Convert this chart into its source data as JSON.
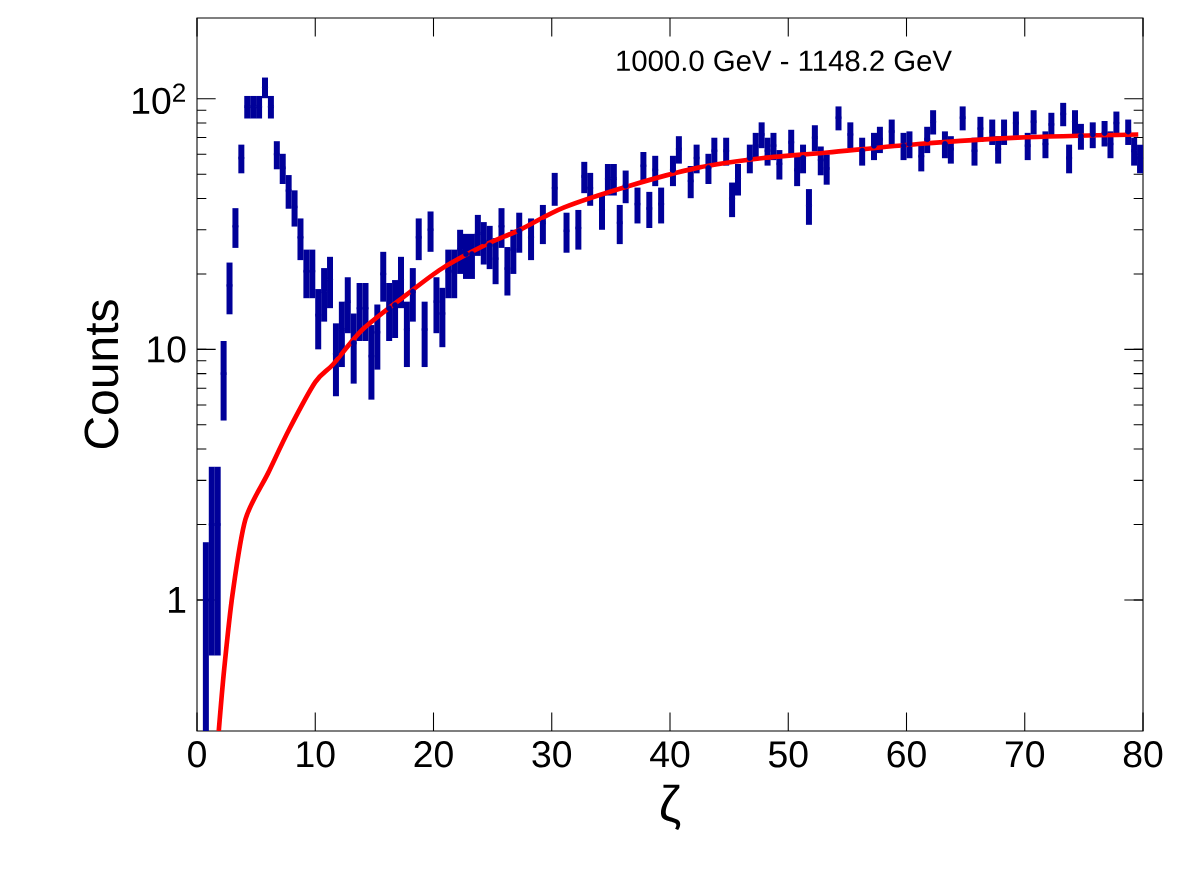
{
  "chart_data": {
    "type": "scatter",
    "xlabel": "ζ",
    "ylabel": "Counts",
    "annotations": [
      "1000.0 GeV - 1148.2 GeV"
    ],
    "log": "y",
    "xlim": [
      0,
      80
    ],
    "ylim": [
      0.3,
      210
    ],
    "xticks": [
      0,
      10,
      20,
      30,
      40,
      50,
      60,
      70,
      80
    ],
    "yticks": [
      1,
      10,
      {
        "value": 100,
        "label": "10$^{2}$"
      }
    ],
    "marker": "none",
    "series": [
      {
        "color": "#000099",
        "x": [
          0.75,
          1.25,
          1.75,
          2.25,
          2.75,
          3.25,
          3.75,
          4.25,
          4.75,
          5.25,
          5.75,
          6.25,
          6.75,
          7.25,
          7.75,
          8.25,
          8.75,
          9.25,
          9.75,
          10.25,
          10.75,
          11.25,
          11.75,
          12.25,
          12.75,
          13.25,
          13.75,
          14.25,
          14.75,
          15.25,
          15.75,
          16.25,
          16.75,
          17.25,
          17.75,
          18.25,
          18.75,
          19.25,
          19.75,
          20.25,
          20.75,
          21.25,
          21.75,
          22.25,
          22.75,
          23.25,
          23.75,
          24.25,
          24.75,
          25.25,
          25.75,
          26.25,
          26.75,
          27.25,
          28.25,
          29.25,
          30.25,
          31.25,
          32.25,
          32.75,
          33.25,
          34.25,
          34.75,
          35.25,
          35.75,
          36.25,
          37.25,
          37.75,
          38.25,
          38.75,
          39.25,
          40.25,
          40.75,
          41.75,
          42.25,
          43.25,
          43.75,
          44.75,
          45.25,
          45.75,
          46.75,
          47.25,
          47.75,
          48.25,
          48.75,
          49.25,
          50.25,
          50.75,
          51.25,
          51.75,
          52.25,
          52.75,
          53.25,
          54.25,
          55.25,
          56.25,
          57.25,
          57.75,
          58.75,
          59.75,
          60.25,
          61.25,
          61.75,
          62.25,
          63.25,
          63.75,
          64.75,
          65.75,
          66.25,
          67.25,
          67.75,
          68.25,
          69.25,
          70.25,
          70.75,
          71.75,
          72.25,
          73.25,
          73.75,
          74.25,
          74.75,
          75.75,
          76.75,
          77.25,
          77.75,
          78.75,
          79.25,
          79.75
        ],
        "values": [
          1,
          2,
          2,
          8,
          18,
          31,
          58,
          93,
          93,
          93,
          111,
          93,
          60,
          53,
          43,
          37,
          28,
          20.5,
          20.5,
          13.7,
          17,
          19,
          9.6,
          12,
          15.5,
          10.6,
          14.6,
          14.6,
          9.4,
          11.7,
          20,
          14.6,
          15,
          19,
          12,
          17,
          28,
          12,
          30,
          15.5,
          13.9,
          20.5,
          20.5,
          25,
          24,
          24,
          29,
          27,
          26,
          23,
          31,
          21,
          25,
          29.7,
          28,
          32,
          44,
          29.7,
          30.5,
          49,
          44,
          36,
          48,
          48,
          32,
          45,
          38,
          54,
          36.5,
          52,
          38,
          52,
          63,
          47,
          58,
          53,
          62,
          62,
          40,
          48,
          58,
          65,
          72,
          62,
          65,
          55,
          67,
          52,
          58,
          37.5,
          70,
          57,
          52.7,
          84,
          72,
          62,
          65,
          69,
          74,
          65,
          66,
          59,
          69,
          81,
          66,
          63,
          84,
          62,
          76,
          74,
          63,
          74,
          80,
          65,
          81,
          66,
          79,
          87,
          58,
          81,
          71,
          72,
          73,
          66,
          80,
          74,
          62,
          58
        ],
        "errors": [
          0.7,
          1.4,
          1.4,
          2.8,
          4.2,
          5.6,
          7.6,
          9.6,
          9.6,
          9.6,
          10.5,
          9.6,
          7.7,
          7.3,
          6.6,
          6.1,
          5.3,
          4.5,
          4.5,
          3.7,
          4.1,
          4.4,
          3.1,
          3.5,
          3.9,
          3.3,
          3.8,
          3.8,
          3.1,
          3.4,
          4.5,
          3.8,
          3.9,
          4.4,
          3.5,
          4.1,
          5.3,
          3.5,
          5.5,
          3.9,
          3.7,
          4.5,
          4.5,
          5,
          4.9,
          4.9,
          5.4,
          5.2,
          5.1,
          4.8,
          5.6,
          4.6,
          5,
          5.4,
          5.3,
          5.7,
          6.6,
          5.4,
          5.5,
          7,
          6.6,
          6,
          6.9,
          6.9,
          5.7,
          6.7,
          6.2,
          7.3,
          6,
          7.2,
          6.2,
          7.2,
          7.9,
          6.9,
          7.6,
          7.3,
          7.9,
          7.9,
          6.3,
          6.9,
          7.6,
          8.1,
          8.5,
          7.9,
          8.1,
          7.4,
          8.2,
          7.2,
          7.6,
          6.1,
          8.4,
          7.5,
          7.3,
          9.2,
          8.5,
          7.9,
          8.1,
          8.3,
          8.6,
          8.1,
          8.1,
          7.7,
          8.3,
          9,
          8.1,
          7.9,
          9.2,
          7.9,
          8.7,
          8.6,
          7.9,
          8.6,
          8.9,
          8.1,
          9,
          8.1,
          8.9,
          9.3,
          7.6,
          9,
          8.4,
          8.5,
          8.5,
          8.1,
          8.9,
          8.6,
          7.9,
          7.6
        ]
      },
      {
        "type": "line",
        "color": "#ff0000",
        "x": [
          1.84,
          2.3,
          3.0,
          4.1,
          6.0,
          7.8,
          10,
          11.5,
          14,
          17.7,
          20.7,
          24.3,
          27.3,
          31,
          36.6,
          42.3,
          47.9,
          53.3,
          61,
          69.4,
          79.6
        ],
        "values": [
          0.3,
          0.53,
          1.05,
          2.1,
          3.2,
          4.8,
          7.4,
          8.7,
          12,
          16.5,
          21,
          26,
          30,
          36.8,
          45,
          53,
          58,
          61,
          66,
          70,
          72
        ]
      }
    ]
  }
}
